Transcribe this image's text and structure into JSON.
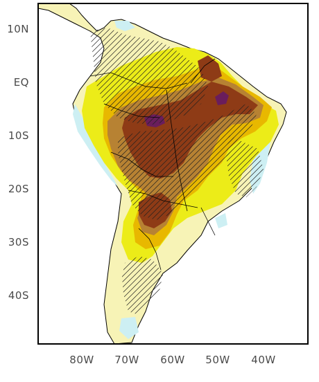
{
  "map": {
    "latitude_labels": [
      "10N",
      "EQ",
      "10S",
      "20S",
      "30S",
      "40S"
    ],
    "longitude_labels": [
      "80W",
      "70W",
      "60W",
      "50W",
      "40W"
    ],
    "colors": {
      "ocean": "#ffffff",
      "near_zero": "#f7f3b6",
      "light_cyan": "#cdeff3",
      "yellow": "#ecec18",
      "gold": "#e8b800",
      "tan": "#b78233",
      "brown": "#8e3b16",
      "purple": "#6a1d5c",
      "coast": "#000000",
      "hatch": "#1f1f1f"
    }
  }
}
